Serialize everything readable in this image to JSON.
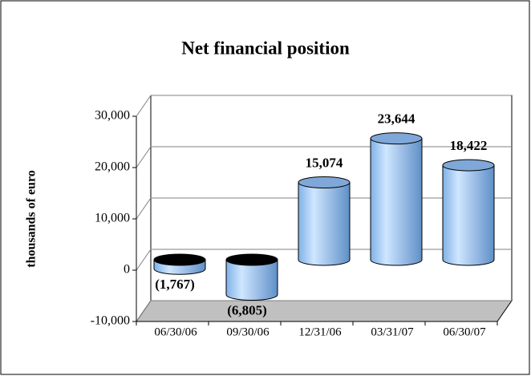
{
  "chart_data": {
    "type": "bar3d",
    "title": "Net financial position",
    "y_label": "thousands of euro",
    "categories": [
      "06/30/06",
      "09/30/06",
      "12/31/06",
      "03/31/07",
      "06/30/07"
    ],
    "values": [
      -1767,
      -6805,
      15074,
      23644,
      18422
    ],
    "value_labels": [
      "(1,767)",
      "(6,805)",
      "15,074",
      "23,644",
      "18,422"
    ],
    "color": "#99ccff",
    "ylim": [
      -10000,
      30000
    ],
    "yticks": [
      {
        "value": -10000,
        "label": "-10,000"
      },
      0,
      {
        "value": 10000,
        "label": "10,000"
      },
      {
        "value": 20000,
        "label": "20,000"
      },
      {
        "value": 30000,
        "label": "30,000"
      }
    ],
    "grid": true
  }
}
